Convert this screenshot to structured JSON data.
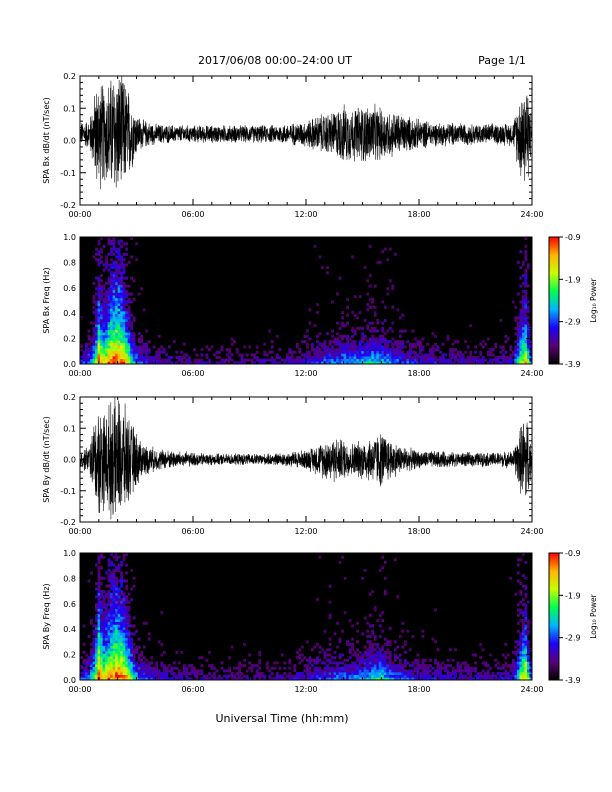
{
  "header": {
    "title": "2017/06/08  00:00–24:00 UT",
    "page": "Page 1/1"
  },
  "x_axis": {
    "label": "Universal Time (hh:mm)",
    "tick_labels": [
      "00:00",
      "06:00",
      "12:00",
      "18:00",
      "24:00"
    ],
    "range_hours": [
      0,
      24
    ]
  },
  "colorbar": {
    "label": "Log₁₀ Power",
    "tick_labels": [
      "-0.9",
      "-1.9",
      "-2.9",
      "-3.9"
    ],
    "range": [
      -3.9,
      -0.9
    ],
    "colors": [
      "#000000",
      "#5a0078",
      "#1e00ff",
      "#00b4ff",
      "#00ff50",
      "#c8ff00",
      "#ffb400",
      "#ff0000"
    ]
  },
  "chart_data": [
    {
      "type": "line",
      "ylabel": "SPA Bx dB/dt (nT/sec)",
      "ylim": [
        -0.2,
        0.2
      ],
      "y_tick_labels": [
        "0.2",
        "0.1",
        "0.0",
        "-0.1",
        "-0.2"
      ],
      "grid": false,
      "envelope_hours": [
        0,
        0.5,
        0.8,
        1,
        1.3,
        1.6,
        2,
        2.3,
        2.6,
        3,
        3.3,
        4,
        5,
        6,
        7,
        8,
        9,
        10,
        11,
        12,
        12.5,
        13,
        13.5,
        14,
        14.5,
        15,
        15.5,
        16,
        16.5,
        17,
        18,
        19,
        20,
        21,
        22,
        23,
        23.4,
        23.7,
        24
      ],
      "envelope_amplitude": [
        0.04,
        0.05,
        0.15,
        0.2,
        0.16,
        0.2,
        0.22,
        0.2,
        0.15,
        0.07,
        0.05,
        0.035,
        0.03,
        0.03,
        0.03,
        0.03,
        0.03,
        0.03,
        0.035,
        0.045,
        0.06,
        0.07,
        0.08,
        0.1,
        0.09,
        0.1,
        0.1,
        0.09,
        0.08,
        0.07,
        0.05,
        0.04,
        0.04,
        0.035,
        0.035,
        0.04,
        0.15,
        0.2,
        0.05
      ],
      "baseline": 0.02
    },
    {
      "type": "heatmap",
      "ylabel": "SPA Bx Freq (Hz)",
      "ylim": [
        0.0,
        1.0
      ],
      "y_tick_labels": [
        "1.0",
        "0.8",
        "0.6",
        "0.4",
        "0.2",
        "0.0"
      ],
      "zlim": [
        -3.9,
        -0.9
      ],
      "activity_hours": [
        0,
        0.5,
        0.8,
        1,
        1.3,
        1.6,
        2,
        2.3,
        2.6,
        3,
        3.3,
        4,
        5,
        6,
        7,
        8,
        9,
        10,
        11,
        12,
        12.5,
        13,
        13.5,
        14,
        14.5,
        15,
        15.5,
        16,
        16.5,
        17,
        18,
        19,
        20,
        21,
        22,
        23,
        23.4,
        23.7,
        24
      ],
      "activity_level": [
        0.3,
        0.4,
        0.7,
        0.95,
        0.8,
        0.95,
        1,
        0.95,
        0.75,
        0.45,
        0.35,
        0.25,
        0.2,
        0.18,
        0.18,
        0.18,
        0.18,
        0.2,
        0.22,
        0.28,
        0.32,
        0.38,
        0.4,
        0.48,
        0.45,
        0.52,
        0.55,
        0.5,
        0.45,
        0.38,
        0.3,
        0.26,
        0.24,
        0.22,
        0.22,
        0.28,
        0.75,
        0.9,
        0.3
      ]
    },
    {
      "type": "line",
      "ylabel": "SPA By dB/dt (nT/sec)",
      "ylim": [
        -0.2,
        0.2
      ],
      "y_tick_labels": [
        "0.2",
        "0.1",
        "0.0",
        "-0.1",
        "-0.2"
      ],
      "grid": false,
      "envelope_hours": [
        0,
        0.5,
        0.8,
        1,
        1.3,
        1.6,
        2,
        2.3,
        2.6,
        3,
        3.3,
        4,
        5,
        6,
        7,
        8,
        9,
        10,
        11,
        12,
        12.5,
        13,
        13.5,
        14,
        14.5,
        15,
        15.5,
        16,
        16.5,
        17,
        18,
        19,
        20,
        21,
        22,
        23,
        23.4,
        23.7,
        24
      ],
      "envelope_amplitude": [
        0.03,
        0.05,
        0.15,
        0.2,
        0.17,
        0.2,
        0.22,
        0.2,
        0.15,
        0.1,
        0.06,
        0.04,
        0.03,
        0.025,
        0.02,
        0.02,
        0.02,
        0.02,
        0.025,
        0.035,
        0.05,
        0.07,
        0.08,
        0.07,
        0.06,
        0.07,
        0.08,
        0.1,
        0.07,
        0.05,
        0.03,
        0.03,
        0.025,
        0.025,
        0.025,
        0.03,
        0.12,
        0.18,
        0.04
      ],
      "baseline": 0.0
    },
    {
      "type": "heatmap",
      "ylabel": "SPA By Freq (Hz)",
      "ylim": [
        0.0,
        1.0
      ],
      "y_tick_labels": [
        "1.0",
        "0.8",
        "0.6",
        "0.4",
        "0.2",
        "0.0"
      ],
      "zlim": [
        -3.9,
        -0.9
      ],
      "activity_hours": [
        0,
        0.5,
        0.8,
        1,
        1.3,
        1.6,
        2,
        2.3,
        2.6,
        3,
        3.3,
        4,
        5,
        6,
        7,
        8,
        9,
        10,
        11,
        12,
        12.5,
        13,
        13.5,
        14,
        14.5,
        15,
        15.5,
        16,
        16.5,
        17,
        18,
        19,
        20,
        21,
        22,
        23,
        23.4,
        23.7,
        24
      ],
      "activity_level": [
        0.3,
        0.4,
        0.75,
        1,
        0.85,
        0.95,
        1,
        0.95,
        0.8,
        0.5,
        0.38,
        0.28,
        0.22,
        0.2,
        0.18,
        0.18,
        0.18,
        0.2,
        0.22,
        0.28,
        0.32,
        0.36,
        0.4,
        0.42,
        0.4,
        0.45,
        0.55,
        0.6,
        0.45,
        0.38,
        0.3,
        0.26,
        0.24,
        0.22,
        0.22,
        0.28,
        0.75,
        0.9,
        0.3
      ]
    }
  ]
}
